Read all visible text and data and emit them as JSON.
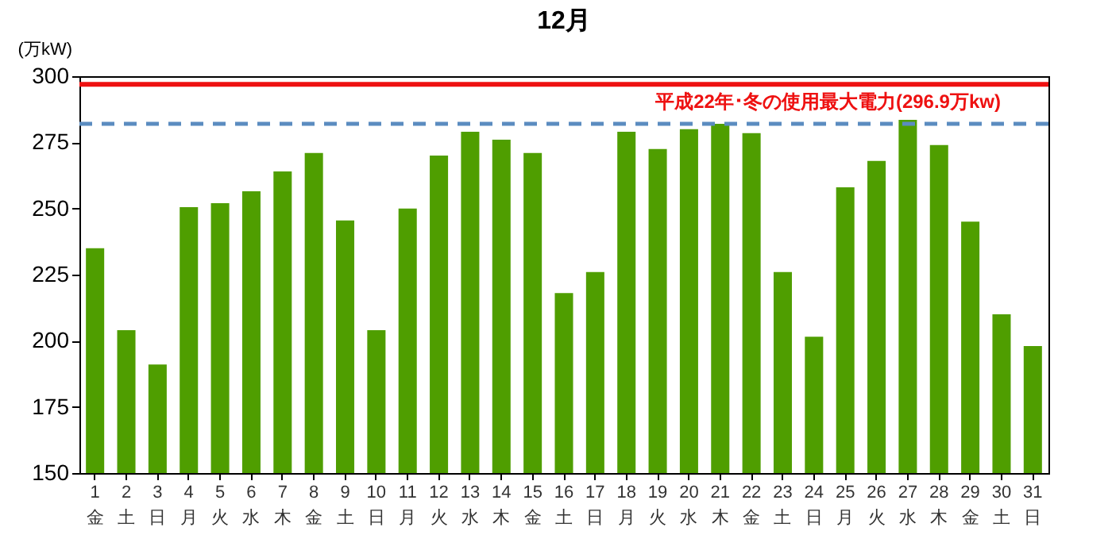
{
  "chart_data": {
    "type": "bar",
    "title": "12月",
    "ylabel": "(万kW)",
    "categories": [
      "1\n金",
      "2\n土",
      "3\n日",
      "4\n月",
      "5\n火",
      "6\n水",
      "7\n木",
      "8\n金",
      "9\n土",
      "10\n日",
      "11\n月",
      "12\n火",
      "13\n水",
      "14\n木",
      "15\n金",
      "16\n土",
      "17\n日",
      "18\n月",
      "19\n火",
      "20\n水",
      "21\n木",
      "22\n金",
      "23\n土",
      "24\n日",
      "25\n月",
      "26\n火",
      "27\n水",
      "28\n木",
      "29\n金",
      "30\n土",
      "31\n日"
    ],
    "values": [
      235,
      204,
      191,
      250.5,
      252,
      256.5,
      264,
      271,
      245.5,
      204,
      250,
      270,
      279,
      276,
      271,
      218,
      226,
      279,
      272.5,
      280,
      282,
      278.5,
      226,
      201.5,
      258,
      268,
      283.5,
      274,
      245,
      210,
      198
    ],
    "color": "#4f9e00",
    "ylim": [
      150,
      300
    ],
    "yticks": [
      150,
      175,
      200,
      225,
      250,
      275,
      300
    ],
    "ref_lines": [
      {
        "axis": "y",
        "value": 296.9,
        "label": "平成22年･冬の使用最大電力(296.9万kw)",
        "color": "#ee1111",
        "line_style": "solid"
      },
      {
        "axis": "y",
        "value": 282,
        "color": "#5b8cc0",
        "line_style": "dashed"
      }
    ]
  }
}
